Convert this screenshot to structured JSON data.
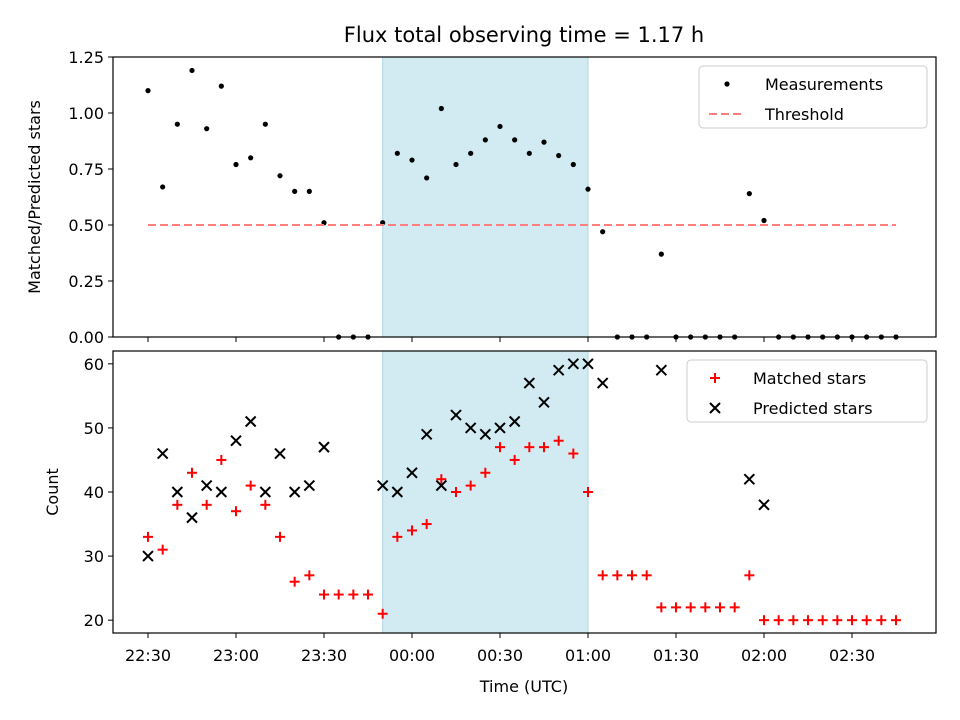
{
  "chart_data": {
    "type": "scatter",
    "title": "Flux total observing time = 1.17 h",
    "xlabel": "Time (UTC)",
    "x_unit": "time of day (hh:mm, UTC), runs past midnight",
    "x_ticks": [
      "22:30",
      "23:00",
      "23:30",
      "00:00",
      "00:30",
      "01:00",
      "01:30",
      "02:00",
      "02:30"
    ],
    "highlight_interval": {
      "start": "23:50",
      "end": "01:00",
      "color": "#add8e6"
    },
    "x": [
      "22:30",
      "22:35",
      "22:40",
      "22:45",
      "22:50",
      "22:55",
      "23:00",
      "23:05",
      "23:10",
      "23:15",
      "23:20",
      "23:25",
      "23:30",
      "23:35",
      "23:40",
      "23:45",
      "23:50",
      "23:55",
      "00:00",
      "00:05",
      "00:10",
      "00:15",
      "00:20",
      "00:25",
      "00:30",
      "00:35",
      "00:40",
      "00:45",
      "00:50",
      "00:55",
      "01:00",
      "01:05",
      "01:10",
      "01:15",
      "01:20",
      "01:25",
      "01:30",
      "01:35",
      "01:40",
      "01:45",
      "01:50",
      "01:55",
      "02:00",
      "02:05",
      "02:10",
      "02:15",
      "02:20",
      "02:25",
      "02:30",
      "02:35",
      "02:40",
      "02:45"
    ],
    "panels": [
      {
        "ylabel": "Matched/Predicted stars",
        "ylim": [
          0,
          1.25
        ],
        "yticks": [
          "0.00",
          "0.25",
          "0.50",
          "0.75",
          "1.00",
          "1.25"
        ],
        "legend_position": "upper right",
        "series": [
          {
            "name": "Measurements",
            "marker": "dot",
            "color": "#000000",
            "values": [
              1.1,
              0.67,
              0.95,
              1.19,
              0.93,
              1.12,
              0.77,
              0.8,
              0.95,
              0.72,
              0.65,
              0.65,
              0.51,
              0,
              0,
              0,
              0.51,
              0.82,
              0.79,
              0.71,
              1.02,
              0.77,
              0.82,
              0.88,
              0.94,
              0.88,
              0.82,
              0.87,
              0.81,
              0.77,
              0.66,
              0.47,
              0,
              0,
              0,
              0.37,
              0,
              0,
              0,
              0,
              0,
              0.64,
              0.52,
              0,
              0,
              0,
              0,
              0,
              0,
              0,
              0,
              0
            ]
          },
          {
            "name": "Threshold",
            "marker": "dashed-line",
            "color": "#ff7f7f",
            "line_value": 0.5,
            "x_range": [
              "22:30",
              "02:45"
            ]
          }
        ]
      },
      {
        "ylabel": "Count",
        "ylim": [
          18,
          62
        ],
        "yticks": [
          "20",
          "30",
          "40",
          "50",
          "60"
        ],
        "legend_position": "upper right",
        "series": [
          {
            "name": "Matched stars",
            "marker": "plus",
            "color": "#ff0000",
            "values": [
              33,
              31,
              38,
              43,
              38,
              45,
              37,
              41,
              38,
              33,
              26,
              27,
              24,
              24,
              24,
              24,
              21,
              33,
              34,
              35,
              42,
              40,
              41,
              43,
              47,
              45,
              47,
              47,
              48,
              46,
              40,
              27,
              27,
              27,
              27,
              22,
              22,
              22,
              22,
              22,
              22,
              27,
              20,
              20,
              20,
              20,
              20,
              20,
              20,
              20,
              20,
              20
            ]
          },
          {
            "name": "Predicted stars",
            "marker": "x",
            "color": "#000000",
            "points": [
              [
                "22:30",
                30
              ],
              [
                "22:35",
                46
              ],
              [
                "22:40",
                40
              ],
              [
                "22:45",
                36
              ],
              [
                "22:50",
                41
              ],
              [
                "22:55",
                40
              ],
              [
                "23:00",
                48
              ],
              [
                "23:05",
                51
              ],
              [
                "23:10",
                40
              ],
              [
                "23:15",
                46
              ],
              [
                "23:20",
                40
              ],
              [
                "23:25",
                41
              ],
              [
                "23:30",
                47
              ],
              [
                "23:50",
                41
              ],
              [
                "23:55",
                40
              ],
              [
                "00:00",
                43
              ],
              [
                "00:05",
                49
              ],
              [
                "00:10",
                41
              ],
              [
                "00:15",
                52
              ],
              [
                "00:20",
                50
              ],
              [
                "00:25",
                49
              ],
              [
                "00:30",
                50
              ],
              [
                "00:35",
                51
              ],
              [
                "00:40",
                57
              ],
              [
                "00:45",
                54
              ],
              [
                "00:50",
                59
              ],
              [
                "00:55",
                60
              ],
              [
                "01:00",
                60
              ],
              [
                "01:05",
                57
              ],
              [
                "01:25",
                59
              ],
              [
                "01:55",
                42
              ],
              [
                "02:00",
                38
              ]
            ]
          }
        ]
      }
    ]
  }
}
